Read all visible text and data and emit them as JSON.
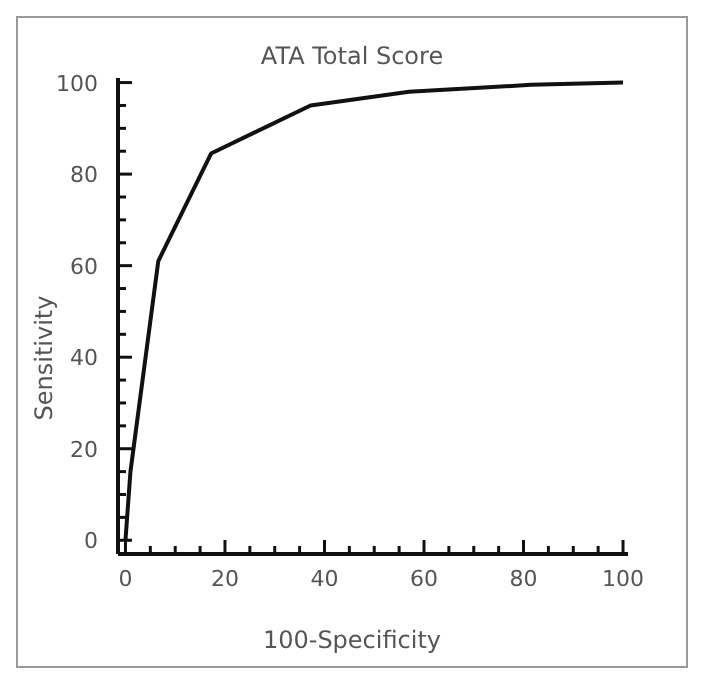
{
  "chart_data": {
    "type": "line",
    "title": "ATA Total Score",
    "xlabel": "100-Specificity",
    "ylabel": "Sensitivity",
    "x": [
      0,
      1,
      6.6,
      17.2,
      37.2,
      57,
      81.5,
      100
    ],
    "series": [
      {
        "color": "#111111",
        "values": [
          0,
          15,
          61,
          84.5,
          95,
          98,
          99.5,
          100
        ]
      }
    ],
    "xlim": [
      -1.5,
      101
    ],
    "ylim": [
      -3,
      101
    ],
    "xticks": [
      0,
      {
        "value": 5,
        "label": null
      },
      {
        "value": 10,
        "label": null
      },
      {
        "value": 15,
        "label": null
      },
      20,
      {
        "value": 25,
        "label": null
      },
      {
        "value": 30,
        "label": null
      },
      {
        "value": 35,
        "label": null
      },
      40,
      {
        "value": 45,
        "label": null
      },
      {
        "value": 50,
        "label": null
      },
      {
        "value": 55,
        "label": null
      },
      60,
      {
        "value": 65,
        "label": null
      },
      {
        "value": 70,
        "label": null
      },
      {
        "value": 75,
        "label": null
      },
      80,
      {
        "value": 85,
        "label": null
      },
      {
        "value": 90,
        "label": null
      },
      {
        "value": 95,
        "label": null
      },
      100
    ],
    "yticks": [
      0,
      {
        "value": 5,
        "label": null
      },
      {
        "value": 10,
        "label": null
      },
      {
        "value": 15,
        "label": null
      },
      20,
      {
        "value": 25,
        "label": null
      },
      {
        "value": 30,
        "label": null
      },
      {
        "value": 35,
        "label": null
      },
      40,
      {
        "value": 45,
        "label": null
      },
      {
        "value": 50,
        "label": null
      },
      {
        "value": 55,
        "label": null
      },
      60,
      {
        "value": 65,
        "label": null
      },
      {
        "value": 70,
        "label": null
      },
      {
        "value": 75,
        "label": null
      },
      80,
      {
        "value": 85,
        "label": null
      },
      {
        "value": 90,
        "label": null
      },
      {
        "value": 95,
        "label": null
      },
      100
    ],
    "grid": false,
    "legend": false,
    "marker": "none",
    "line_style": "solid"
  }
}
